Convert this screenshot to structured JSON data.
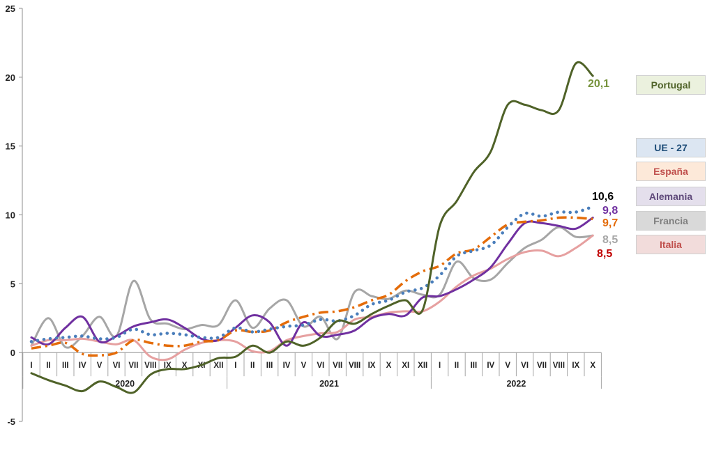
{
  "chart_data": {
    "type": "line",
    "ylim": [
      -5,
      25
    ],
    "yticks": [
      -5,
      0,
      5,
      10,
      15,
      20,
      25
    ],
    "months": [
      "I",
      "II",
      "III",
      "IV",
      "V",
      "VI",
      "VII",
      "VIII",
      "IX",
      "X",
      "XI",
      "XII",
      "I",
      "II",
      "III",
      "IV",
      "V",
      "VI",
      "VII",
      "VIII",
      "IX",
      "X",
      "XI",
      "XII",
      "I",
      "II",
      "III",
      "IV",
      "V",
      "VI",
      "VII",
      "VIII",
      "IX",
      "X"
    ],
    "years": [
      {
        "label": "2020",
        "start": 0,
        "end": 11
      },
      {
        "label": "2021",
        "start": 12,
        "end": 23
      },
      {
        "label": "2022",
        "start": 24,
        "end": 33
      }
    ],
    "series": [
      {
        "name": "Portugal",
        "color": "#4f6228",
        "style": "solid",
        "legend_bg": "#ebf1de",
        "legend_text": "#4f6228",
        "end_label": "20,1",
        "end_label_color": "#77933c",
        "values": [
          -1.5,
          -2.0,
          -2.4,
          -2.8,
          -2.1,
          -2.5,
          -2.9,
          -1.6,
          -1.2,
          -1.2,
          -0.9,
          -0.4,
          -0.3,
          0.5,
          0.0,
          0.8,
          0.5,
          1.1,
          2.3,
          2.1,
          2.8,
          3.4,
          3.8,
          3.1,
          9.2,
          11.0,
          13.1,
          14.6,
          18.0,
          18.0,
          17.6,
          17.6,
          21.0,
          20.1
        ]
      },
      {
        "name": "UE - 27",
        "color": "#4a7ebb",
        "style": "dotted",
        "legend_bg": "#dce6f2",
        "legend_text": "#1f4e79",
        "end_label": "10,6",
        "end_label_color": "#000000",
        "values": [
          0.8,
          1.0,
          1.1,
          1.2,
          1.0,
          1.1,
          1.7,
          1.3,
          1.4,
          1.3,
          1.1,
          1.1,
          1.8,
          1.5,
          1.7,
          1.9,
          2.0,
          2.4,
          2.3,
          2.7,
          3.5,
          3.8,
          4.4,
          4.7,
          5.6,
          7.0,
          7.4,
          7.8,
          9.1,
          10.1,
          9.9,
          10.2,
          10.2,
          10.6
        ]
      },
      {
        "name": "España",
        "color": "#e46c0a",
        "style": "dashdot",
        "legend_bg": "#fde9d9",
        "legend_text": "#c0504d",
        "end_label": "9,7",
        "end_label_color": "#e46c0a",
        "values": [
          0.3,
          0.5,
          0.7,
          -0.1,
          -0.2,
          0.0,
          0.9,
          0.7,
          0.5,
          0.5,
          0.8,
          0.9,
          1.6,
          1.5,
          1.6,
          2.2,
          2.6,
          2.9,
          3.0,
          3.3,
          3.8,
          4.2,
          5.2,
          5.9,
          6.3,
          7.2,
          7.5,
          8.4,
          9.3,
          9.5,
          9.6,
          9.8,
          9.8,
          9.7
        ]
      },
      {
        "name": "Alemania",
        "color": "#7030a0",
        "style": "solid",
        "legend_bg": "#e4dfec",
        "legend_text": "#5f497a",
        "end_label": "9,8",
        "end_label_color": "#7030a0",
        "values": [
          1.1,
          0.6,
          1.8,
          2.6,
          0.8,
          1.2,
          1.9,
          2.2,
          2.4,
          1.8,
          1.0,
          0.9,
          1.8,
          2.7,
          2.2,
          0.5,
          2.2,
          1.2,
          1.3,
          1.6,
          2.5,
          2.8,
          2.7,
          4.0,
          4.1,
          4.6,
          5.3,
          6.2,
          7.9,
          9.4,
          9.4,
          9.2,
          9.0,
          9.8
        ]
      },
      {
        "name": "Francia",
        "color": "#a6a6a6",
        "style": "solid",
        "legend_bg": "#d9d9d9",
        "legend_text": "#7f7f7f",
        "end_label": "8,5",
        "end_label_color": "#a6a6a6",
        "values": [
          0.5,
          2.5,
          0.4,
          1.2,
          2.6,
          1.2,
          5.2,
          2.4,
          2.1,
          1.7,
          2.0,
          2.0,
          3.8,
          1.8,
          3.2,
          3.8,
          1.9,
          2.6,
          1.0,
          4.4,
          4.1,
          3.9,
          4.5,
          4.2,
          4.2,
          6.6,
          5.4,
          5.3,
          6.5,
          7.6,
          8.2,
          9.1,
          8.4,
          8.5
        ]
      },
      {
        "name": "Italia",
        "color": "#e6a0a0",
        "style": "solid",
        "legend_bg": "#f2dcdb",
        "legend_text": "#c0504d",
        "end_label": "8,5",
        "end_label_color": "#c00000",
        "values": [
          0.5,
          0.9,
          0.9,
          1.0,
          0.8,
          0.6,
          0.9,
          -0.3,
          -0.5,
          0.2,
          0.7,
          0.9,
          0.8,
          0.1,
          0.1,
          0.9,
          1.2,
          1.4,
          1.5,
          2.4,
          2.6,
          2.9,
          3.0,
          3.0,
          3.7,
          4.8,
          5.6,
          6.1,
          6.8,
          7.3,
          7.4,
          7.0,
          7.6,
          8.5
        ]
      }
    ]
  }
}
